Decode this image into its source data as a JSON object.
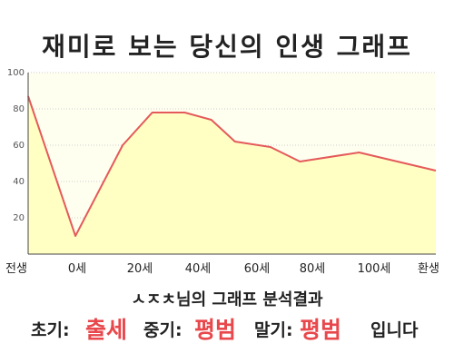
{
  "title": "재미로 보는 당신의 인생 그래프",
  "result_line": "ㅅㅈㅊ님의 그래프 분석결과",
  "verdict": {
    "early_label": "초기:",
    "early_value": "출세",
    "middle_label": "중기:",
    "middle_value": "평범",
    "late_label": "말기:",
    "late_value": "평범",
    "suffix": "입니다"
  },
  "colors": {
    "line": "#e45a5a",
    "area": "#ffffc4",
    "plot_background": "#fffff0",
    "grid": "#cccccc",
    "verdict_value": "#e8474b"
  },
  "chart_data": {
    "type": "area",
    "title": "재미로 보는 당신의 인생 그래프",
    "ylim": [
      0,
      100
    ],
    "yticks": [
      20,
      40,
      60,
      80,
      100
    ],
    "grid": true,
    "x_tick_labels": [
      "전생",
      "0세",
      "20세",
      "40세",
      "60세",
      "80세",
      "100세",
      "환생"
    ],
    "points": [
      {
        "x": -16,
        "y": 87
      },
      {
        "x": 0,
        "y": 10
      },
      {
        "x": 16,
        "y": 60
      },
      {
        "x": 26,
        "y": 78
      },
      {
        "x": 37,
        "y": 78
      },
      {
        "x": 46,
        "y": 74
      },
      {
        "x": 54,
        "y": 62
      },
      {
        "x": 66,
        "y": 59
      },
      {
        "x": 76,
        "y": 51
      },
      {
        "x": 96,
        "y": 56
      },
      {
        "x": 122,
        "y": 46
      }
    ],
    "xlim": [
      -16,
      122
    ]
  }
}
